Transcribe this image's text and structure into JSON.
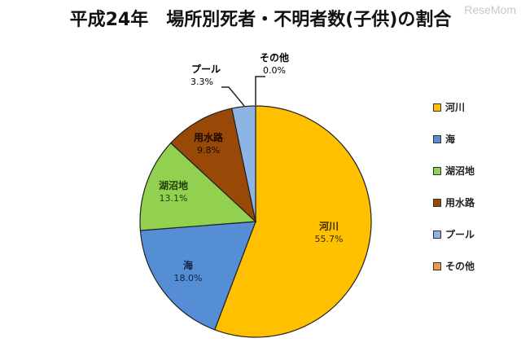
{
  "title": "平成24年　場所別死者・不明者数(子供)の割合",
  "watermark": "ReseMom",
  "chart_data": {
    "type": "pie",
    "title": "平成24年　場所別死者・不明者数(子供)の割合",
    "categories": [
      "河川",
      "海",
      "湖沼地",
      "用水路",
      "プール",
      "その他"
    ],
    "values": [
      55.7,
      18.0,
      13.1,
      9.8,
      3.3,
      0.0
    ],
    "labels": [
      "55.7%",
      "18.0%",
      "13.1%",
      "9.8%",
      "3.3%",
      "0.0%"
    ],
    "colors": [
      "#FFC000",
      "#558ED5",
      "#92D050",
      "#984807",
      "#8EB4E3",
      "#F79646"
    ],
    "start_angle": "12 o'clock, clockwise",
    "legend_position": "right"
  },
  "slices": [
    {
      "name": "河川",
      "value": "55.7%",
      "color": "#FFC000",
      "text_color": "#3a2a00"
    },
    {
      "name": "海",
      "value": "18.0%",
      "color": "#558ED5",
      "text_color": "#0f2444"
    },
    {
      "name": "湖沼地",
      "value": "13.1%",
      "color": "#92D050",
      "text_color": "#1e3d0a"
    },
    {
      "name": "用水路",
      "value": "9.8%",
      "color": "#984807",
      "text_color": "#1a0a00"
    },
    {
      "name": "プール",
      "value": "3.3%",
      "color": "#8EB4E3",
      "text_color": "#222"
    },
    {
      "name": "その他",
      "value": "0.0%",
      "color": "#F79646",
      "text_color": "#222"
    }
  ],
  "legend": [
    {
      "label": "河川",
      "color": "#FFC000"
    },
    {
      "label": "海",
      "color": "#558ED5"
    },
    {
      "label": "湖沼地",
      "color": "#92D050"
    },
    {
      "label": "用水路",
      "color": "#984807"
    },
    {
      "label": "プール",
      "color": "#8EB4E3"
    },
    {
      "label": "その他",
      "color": "#F79646"
    }
  ]
}
